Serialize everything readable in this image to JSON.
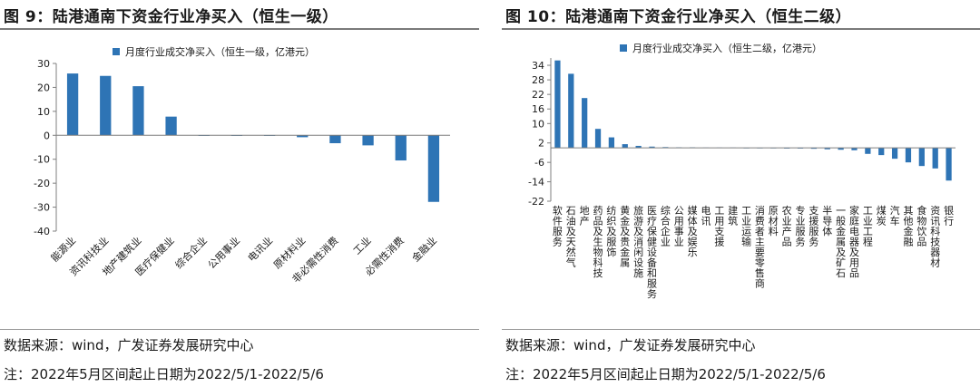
{
  "left": {
    "title": "图 9：陆港通南下资金行业净买入（恒生一级）",
    "source": "数据来源：wind，广发证券发展研究中心",
    "note": "注：2022年5月区间起止日期为2022/5/1-2022/5/6"
  },
  "right": {
    "title": "图 10：陆港通南下资金行业净买入（恒生二级）",
    "source": "数据来源：wind，广发证券发展研究中心",
    "note": "注：2022年5月区间起止日期为2022/5/1-2022/5/6"
  },
  "colors": {
    "bar": "#2e74b5",
    "axis": "#7f7f7f"
  },
  "chart_data": [
    {
      "type": "bar",
      "legend": "月度行业成交净买入（恒生一级，亿港元）",
      "legend_position": "top",
      "ylim": [
        -40,
        30
      ],
      "yticks": [
        30,
        20,
        10,
        0,
        -10,
        -20,
        -30,
        -40
      ],
      "categories": [
        "能源业",
        "资讯科技业",
        "地产建筑业",
        "医疗保健业",
        "综合企业",
        "公用事业",
        "电讯业",
        "原材料业",
        "非必需性消费",
        "工业",
        "必需性消费",
        "金融业"
      ],
      "values": [
        25.8,
        24.8,
        20.5,
        7.8,
        0,
        0,
        0,
        -0.8,
        -3.3,
        -4.2,
        -10.5,
        -27.8
      ]
    },
    {
      "type": "bar",
      "legend": "月度行业成交净买入（恒生二级，亿港元）",
      "legend_position": "top",
      "ylim": [
        -22,
        37
      ],
      "yticks": [
        34,
        28,
        22,
        16,
        10,
        2,
        -6,
        -14,
        -22
      ],
      "categories": [
        "软件服务",
        "石油及天然气",
        "地产",
        "药品及生物科技",
        "纺织及服饰",
        "黄金及贵金属",
        "旅游及消闲设施",
        "医疗保健设备和服务",
        "综合企业",
        "公用事业",
        "媒体及娱乐",
        "电讯",
        "工用支援",
        "建筑",
        "工业运输",
        "消费者主要零售商",
        "原材料",
        "农业产品",
        "专业服务",
        "支援服务",
        "半导体",
        "一般金属及矿石",
        "家庭电器及用品",
        "工业工程",
        "煤炭",
        "汽车",
        "其他金融",
        "食物饮品",
        "资讯科技器材",
        "银行"
      ],
      "values": [
        36.0,
        30.5,
        20.5,
        7.8,
        4.3,
        1.5,
        0.8,
        0.5,
        0.3,
        0.2,
        0.2,
        0.1,
        0.1,
        0.1,
        0.0,
        -0.2,
        -0.2,
        -0.3,
        -0.3,
        -0.4,
        -0.6,
        -0.8,
        -1.0,
        -2.5,
        -3.0,
        -4.5,
        -6.0,
        -7.5,
        -8.5,
        -13.5
      ]
    }
  ]
}
